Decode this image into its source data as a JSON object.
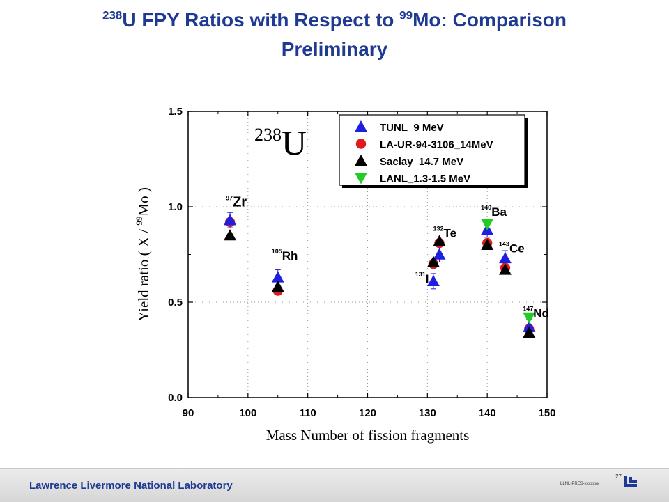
{
  "page": {
    "title": {
      "iso1": "238",
      "part1": "U FPY Ratios with Respect to ",
      "iso2": "99",
      "part2": "Mo: Comparison",
      "line2": "Preliminary"
    }
  },
  "chart_data": {
    "type": "scatter",
    "xlabel": "Mass Number of fission fragments",
    "ylabel": {
      "pre": "Yield ratio ( X / ",
      "sup": "99",
      "post": "Mo )"
    },
    "xlim": [
      90,
      150
    ],
    "ylim": [
      0.0,
      1.5
    ],
    "xticks": [
      90,
      100,
      110,
      120,
      130,
      140,
      150
    ],
    "yticks": [
      "0.0",
      "0.5",
      "1.0",
      "1.5"
    ],
    "grid": true,
    "legend_position": "top-right",
    "inset": {
      "sup": "238",
      "text": "U"
    },
    "series": [
      {
        "name": "TUNL_9 MeV",
        "marker": "triangle-up",
        "color": "#1f1fe0",
        "points": [
          [
            97,
            0.93
          ],
          [
            105,
            0.63
          ],
          [
            131,
            0.61
          ],
          [
            132,
            0.75
          ],
          [
            140,
            0.88
          ],
          [
            143,
            0.73
          ],
          [
            147,
            0.37
          ]
        ]
      },
      {
        "name": "LA-UR-94-3106_14MeV",
        "marker": "circle",
        "color": "#e01b1b",
        "points": [
          [
            97,
            0.92
          ],
          [
            105,
            0.56
          ],
          [
            131,
            0.7
          ],
          [
            132,
            0.81
          ],
          [
            140,
            0.81
          ],
          [
            143,
            0.68
          ],
          [
            147,
            0.36
          ]
        ]
      },
      {
        "name": "Saclay_14.7 MeV",
        "marker": "triangle-up",
        "color": "#000000",
        "points": [
          [
            97,
            0.85
          ],
          [
            105,
            0.58
          ],
          [
            131,
            0.71
          ],
          [
            132,
            0.82
          ],
          [
            140,
            0.8
          ],
          [
            143,
            0.67
          ],
          [
            147,
            0.34
          ]
        ]
      },
      {
        "name": "LANL_1.3-1.5 MeV",
        "marker": "triangle-down",
        "color": "#22cc22",
        "points": [
          [
            140,
            0.91
          ],
          [
            147,
            0.42
          ]
        ]
      }
    ],
    "annotations": [
      {
        "sup": "97",
        "text": "Zr",
        "x": 97,
        "y": 1.02
      },
      {
        "sup": "105",
        "text": "Rh",
        "x": 105,
        "y": 0.74
      },
      {
        "sup": "131",
        "text": "I",
        "x": 129,
        "y": 0.62
      },
      {
        "sup": "132",
        "text": "Te",
        "x": 132,
        "y": 0.86
      },
      {
        "sup": "140",
        "text": "Ba",
        "x": 140,
        "y": 0.97
      },
      {
        "sup": "143",
        "text": "Ce",
        "x": 143,
        "y": 0.78
      },
      {
        "sup": "147",
        "text": "Nd",
        "x": 147,
        "y": 0.44
      }
    ],
    "colors": {
      "title": "#1f3a93",
      "axis": "#000000",
      "grid": "#9a9a9a"
    }
  },
  "footer": {
    "lab": "Lawrence Livermore National Laboratory",
    "page": "27",
    "code": "LLNL-PRES-xxxxxxx"
  }
}
